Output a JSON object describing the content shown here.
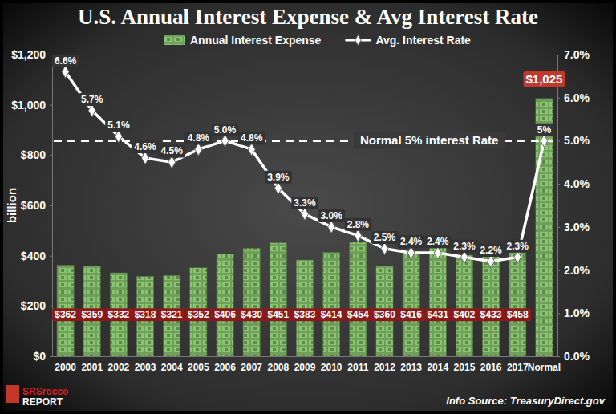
{
  "chart_data": {
    "type": "bar",
    "title": "U.S. Annual Interest Expense & Avg Interest Rate",
    "ylabel": "billion",
    "categories": [
      "2000",
      "2001",
      "2002",
      "2003",
      "2004",
      "2005",
      "2006",
      "2007",
      "2008",
      "2009",
      "2010",
      "2011",
      "2012",
      "2013",
      "2014",
      "2015",
      "2016",
      "2017",
      "Normal"
    ],
    "series": [
      {
        "name": "Annual Interest Expense",
        "type": "bar",
        "axis": "y",
        "color": "#6f9f5a",
        "values": [
          362,
          359,
          332,
          318,
          321,
          352,
          406,
          430,
          451,
          383,
          414,
          454,
          360,
          416,
          431,
          402,
          433,
          458,
          1025
        ],
        "value_labels": [
          "$362",
          "$359",
          "$332",
          "$318",
          "$321",
          "$352",
          "$406",
          "$430",
          "$451",
          "$383",
          "$414",
          "$454",
          "$360",
          "$416",
          "$431",
          "$402",
          "$433",
          "$458",
          "$1,025"
        ]
      },
      {
        "name": "Avg. Interest Rate",
        "type": "line",
        "axis": "y2",
        "color": "#ffffff",
        "marker": "diamond",
        "values": [
          6.6,
          5.7,
          5.1,
          4.6,
          4.5,
          4.8,
          5.0,
          4.8,
          3.9,
          3.3,
          3.0,
          2.8,
          2.5,
          2.4,
          2.4,
          2.3,
          2.2,
          2.3,
          5
        ],
        "value_labels": [
          "6.6%",
          "5.7%",
          "5.1%",
          "4.6%",
          "4.5%",
          "4.8%",
          "5.0%",
          "4.8%",
          "3.9%",
          "3.3%",
          "3.0%",
          "2.8%",
          "2.5%",
          "2.4%",
          "2.4%",
          "2.3%",
          "2.2%",
          "2.3%",
          "5%"
        ]
      }
    ],
    "ylim": [
      0,
      1200
    ],
    "yticks": [
      {
        "value": 0,
        "label": "$0"
      },
      {
        "value": 200,
        "label": "$200"
      },
      {
        "value": 400,
        "label": "$400"
      },
      {
        "value": 600,
        "label": "$600"
      },
      {
        "value": 800,
        "label": "$800"
      },
      {
        "value": 1000,
        "label": "$1,000"
      },
      {
        "value": 1200,
        "label": "$1,200"
      }
    ],
    "y2lim": [
      0,
      7
    ],
    "y2ticks": [
      {
        "value": 0,
        "label": "0.0%"
      },
      {
        "value": 1,
        "label": "1.0%"
      },
      {
        "value": 2,
        "label": "2.0%"
      },
      {
        "value": 3,
        "label": "3.0%"
      },
      {
        "value": 4,
        "label": "4.0%"
      },
      {
        "value": 5,
        "label": "5.0%"
      },
      {
        "value": 6,
        "label": "6.0%"
      },
      {
        "value": 7,
        "label": "7.0%"
      }
    ],
    "annotations": [
      {
        "text": "Normal 5% interest Rate",
        "axis": "y2",
        "value": 5,
        "line_style": "dashed"
      }
    ],
    "source": "Info Source: TreasuryDirect.gov",
    "logo": {
      "text": "SRSrocco",
      "subtext": "REPORT"
    },
    "legend": "top",
    "grid": false,
    "data_labels": true
  }
}
